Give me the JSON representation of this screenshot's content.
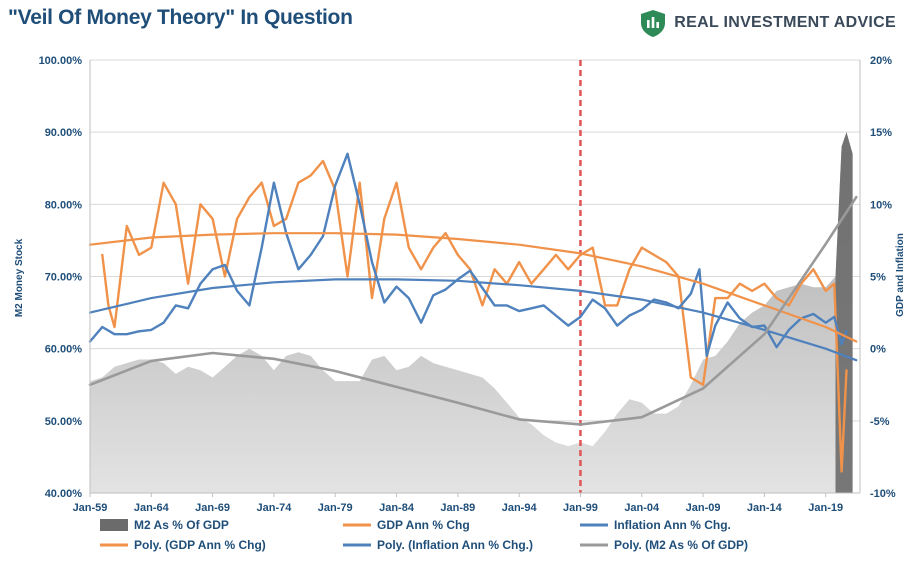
{
  "header": {
    "title": "\"Veil Of Money Theory\" In Question",
    "brand_name": "REAL INVESTMENT ADVICE",
    "brand_logo_icon": "shield-icon",
    "brand_color": "#2e8b57"
  },
  "chart_data": {
    "type": "line",
    "title": "\"Veil Of Money Theory\" In Question",
    "ylabel_left": "M2 Money Stock",
    "ylabel_right": "GDP and Inflation",
    "ylim_left": [
      0.4,
      1.0
    ],
    "ylim_right": [
      -0.1,
      0.2
    ],
    "y_ticks_left": [
      "40.00%",
      "50.00%",
      "60.00%",
      "70.00%",
      "80.00%",
      "90.00%",
      "100.00%"
    ],
    "y_ticks_right": [
      "-10%",
      "-5%",
      "0%",
      "5%",
      "10%",
      "15%",
      "20%"
    ],
    "x_range": [
      1959.0,
      2021.8
    ],
    "x_tick_labels": [
      "Jan-59",
      "Jan-64",
      "Jan-69",
      "Jan-74",
      "Jan-79",
      "Jan-84",
      "Jan-89",
      "Jan-94",
      "Jan-99",
      "Jan-04",
      "Jan-09",
      "Jan-14",
      "Jan-19"
    ],
    "x_tick_years": [
      1959,
      1964,
      1969,
      1974,
      1979,
      1984,
      1989,
      1994,
      1999,
      2004,
      2009,
      2014,
      2019
    ],
    "vertical_marker": {
      "year": 1999.0,
      "color": "#e05555",
      "style": "dashed"
    },
    "legend_position": "bottom",
    "legend": [
      "M2 As % Of GDP",
      "GDP Ann % Chg",
      "Inflation Ann % Chg.",
      "Poly. (GDP Ann % Chg)",
      "Poly. (Inflation Ann % Chg.)",
      "Poly. (M2 As % Of GDP)"
    ],
    "colors": {
      "m2": "#b5b5b5",
      "m2_dark": "#6b6b6b",
      "gdp": "#f0924a",
      "inflation": "#4f81bd",
      "m2_poly": "#9a9a9a"
    },
    "series": [
      {
        "name": "M2 As % Of GDP",
        "axis": "left",
        "kind": "area",
        "x": [
          1959,
          1960,
          1961,
          1962,
          1963,
          1964,
          1965,
          1966,
          1967,
          1968,
          1969,
          1970,
          1971,
          1972,
          1973,
          1974,
          1975,
          1976,
          1977,
          1978,
          1979,
          1980,
          1981,
          1982,
          1983,
          1984,
          1985,
          1986,
          1987,
          1988,
          1989,
          1990,
          1991,
          1992,
          1993,
          1994,
          1995,
          1996,
          1997,
          1998,
          1999,
          2000,
          2001,
          2002,
          2003,
          2004,
          2005,
          2006,
          2007,
          2008,
          2009,
          2010,
          2011,
          2012,
          2013,
          2014,
          2015,
          2016,
          2017,
          2018,
          2019,
          2019.8,
          2020.3,
          2020.7,
          2021.2
        ],
        "values": [
          0.555,
          0.56,
          0.575,
          0.58,
          0.585,
          0.585,
          0.58,
          0.565,
          0.575,
          0.57,
          0.56,
          0.575,
          0.59,
          0.6,
          0.59,
          0.57,
          0.59,
          0.595,
          0.59,
          0.57,
          0.555,
          0.555,
          0.555,
          0.585,
          0.59,
          0.57,
          0.575,
          0.59,
          0.58,
          0.575,
          0.57,
          0.565,
          0.56,
          0.545,
          0.525,
          0.505,
          0.495,
          0.48,
          0.47,
          0.465,
          0.47,
          0.465,
          0.485,
          0.51,
          0.53,
          0.525,
          0.51,
          0.51,
          0.52,
          0.55,
          0.585,
          0.59,
          0.61,
          0.635,
          0.65,
          0.66,
          0.68,
          0.685,
          0.69,
          0.685,
          0.685,
          0.7,
          0.88,
          0.9,
          0.87
        ]
      },
      {
        "name": "GDP Ann % Chg",
        "axis": "right",
        "kind": "line",
        "x": [
          1960,
          1960.5,
          1961,
          1962,
          1963,
          1964,
          1965,
          1966,
          1967,
          1968,
          1969,
          1970,
          1971,
          1972,
          1973,
          1974,
          1975,
          1976,
          1977,
          1978,
          1979,
          1980,
          1981,
          1982,
          1983,
          1984,
          1985,
          1986,
          1987,
          1988,
          1989,
          1990,
          1991,
          1992,
          1993,
          1994,
          1995,
          1996,
          1997,
          1998,
          1999,
          2000,
          2001,
          2002,
          2003,
          2004,
          2005,
          2006,
          2007,
          2008,
          2009,
          2010,
          2011,
          2012,
          2013,
          2014,
          2015,
          2016,
          2017,
          2018,
          2019,
          2019.7,
          2020.3,
          2020.7
        ],
        "values": [
          0.065,
          0.03,
          0.015,
          0.085,
          0.065,
          0.07,
          0.115,
          0.1,
          0.045,
          0.1,
          0.09,
          0.05,
          0.09,
          0.105,
          0.115,
          0.085,
          0.09,
          0.115,
          0.12,
          0.13,
          0.11,
          0.05,
          0.115,
          0.035,
          0.09,
          0.115,
          0.07,
          0.055,
          0.07,
          0.08,
          0.065,
          0.055,
          0.03,
          0.055,
          0.045,
          0.06,
          0.045,
          0.055,
          0.065,
          0.055,
          0.065,
          0.07,
          0.03,
          0.03,
          0.055,
          0.07,
          0.065,
          0.06,
          0.05,
          -0.02,
          -0.025,
          0.035,
          0.035,
          0.045,
          0.04,
          0.045,
          0.035,
          0.03,
          0.045,
          0.055,
          0.04,
          0.045,
          -0.085,
          -0.015
        ]
      },
      {
        "name": "Inflation Ann % Chg.",
        "axis": "right",
        "kind": "line",
        "x": [
          1959,
          1960,
          1961,
          1962,
          1963,
          1964,
          1965,
          1966,
          1967,
          1968,
          1969,
          1970,
          1971,
          1972,
          1973,
          1974,
          1975,
          1976,
          1977,
          1978,
          1979,
          1980,
          1981,
          1982,
          1983,
          1984,
          1985,
          1986,
          1987,
          1988,
          1989,
          1990,
          1991,
          1992,
          1993,
          1994,
          1995,
          1996,
          1997,
          1998,
          1999,
          2000,
          2001,
          2002,
          2003,
          2004,
          2005,
          2006,
          2007,
          2008,
          2008.7,
          2009.3,
          2010,
          2011,
          2012,
          2013,
          2014,
          2015,
          2016,
          2017,
          2018,
          2019,
          2019.7,
          2020.3,
          2020.7
        ],
        "values": [
          0.005,
          0.015,
          0.01,
          0.01,
          0.012,
          0.013,
          0.018,
          0.03,
          0.028,
          0.045,
          0.055,
          0.058,
          0.04,
          0.03,
          0.07,
          0.115,
          0.08,
          0.055,
          0.065,
          0.078,
          0.113,
          0.135,
          0.1,
          0.06,
          0.032,
          0.043,
          0.035,
          0.018,
          0.037,
          0.041,
          0.048,
          0.054,
          0.042,
          0.03,
          0.03,
          0.026,
          0.028,
          0.03,
          0.023,
          0.016,
          0.022,
          0.034,
          0.028,
          0.016,
          0.023,
          0.027,
          0.034,
          0.032,
          0.028,
          0.038,
          0.055,
          -0.005,
          0.016,
          0.032,
          0.021,
          0.015,
          0.016,
          0.001,
          0.013,
          0.021,
          0.024,
          0.018,
          0.022,
          0.003,
          0.012
        ]
      },
      {
        "name": "Poly. (GDP Ann % Chg)",
        "axis": "right",
        "kind": "trend",
        "x": [
          1959,
          1964,
          1969,
          1974,
          1979,
          1984,
          1989,
          1994,
          1999,
          2004,
          2009,
          2014,
          2019,
          2021.5
        ],
        "values": [
          0.072,
          0.077,
          0.079,
          0.08,
          0.08,
          0.079,
          0.076,
          0.072,
          0.066,
          0.057,
          0.045,
          0.03,
          0.015,
          0.005
        ]
      },
      {
        "name": "Poly. (Inflation Ann % Chg.)",
        "axis": "right",
        "kind": "trend",
        "x": [
          1959,
          1964,
          1969,
          1974,
          1979,
          1984,
          1989,
          1994,
          1999,
          2004,
          2009,
          2014,
          2019,
          2021.5
        ],
        "values": [
          0.025,
          0.035,
          0.042,
          0.046,
          0.048,
          0.048,
          0.047,
          0.044,
          0.04,
          0.034,
          0.025,
          0.013,
          0.0,
          -0.008
        ]
      },
      {
        "name": "Poly. (M2 As % Of GDP)",
        "axis": "left",
        "kind": "trend",
        "x": [
          1959,
          1964,
          1969,
          1974,
          1979,
          1984,
          1989,
          1994,
          1999,
          2004,
          2009,
          2014,
          2019,
          2021.5
        ],
        "values": [
          0.55,
          0.583,
          0.594,
          0.586,
          0.569,
          0.547,
          0.525,
          0.502,
          0.495,
          0.505,
          0.545,
          0.62,
          0.745,
          0.81
        ]
      }
    ]
  }
}
